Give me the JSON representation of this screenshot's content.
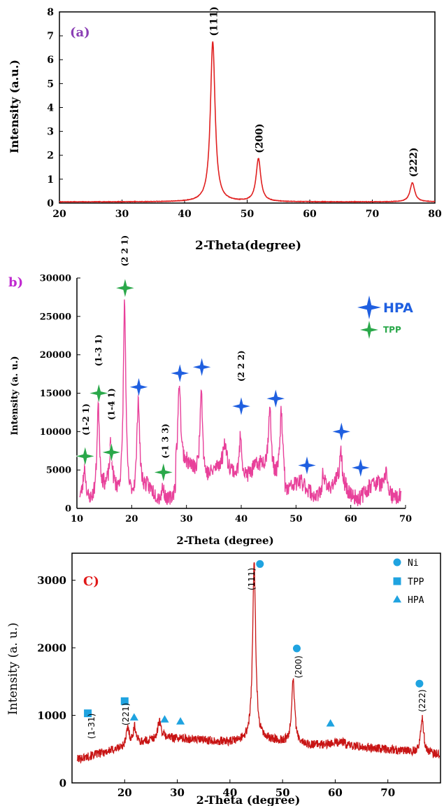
{
  "chart_data": [
    {
      "type": "line",
      "panel_label": "(a)",
      "xlabel": "2-Theta(degree)",
      "ylabel": "Intensity (a.u.)",
      "xlim": [
        20,
        80
      ],
      "ylim": [
        0,
        8
      ],
      "xticks": [
        20,
        30,
        40,
        50,
        60,
        70,
        80
      ],
      "yticks": [
        0,
        1,
        2,
        3,
        4,
        5,
        6,
        7,
        8
      ],
      "line_color": "#e02020",
      "baseline": 0.05,
      "peaks": [
        {
          "x": 44.5,
          "y": 6.75,
          "label": "(111)"
        },
        {
          "x": 51.8,
          "y": 1.85,
          "label": "(200)"
        },
        {
          "x": 76.4,
          "y": 0.85,
          "label": "(222)"
        }
      ]
    },
    {
      "type": "line",
      "panel_label": "b)",
      "xlabel": "2-Theta (degree)",
      "ylabel": "Intensity (a. u.)",
      "xlim": [
        10,
        70
      ],
      "ylim": [
        0,
        30000
      ],
      "xticks": [
        10,
        20,
        30,
        40,
        50,
        60,
        70
      ],
      "yticks": [
        0,
        5000,
        10000,
        15000,
        20000,
        25000,
        30000
      ],
      "line_color": "#e8409a",
      "legend": [
        {
          "name": "HPA",
          "color": "#1f5fe0"
        },
        {
          "name": "TPP",
          "color": "#2aa84a"
        }
      ],
      "peak_labels": [
        {
          "x": 11.5,
          "y": 9500,
          "label": "(1-2 1)"
        },
        {
          "x": 13.8,
          "y": 18500,
          "label": "(1-3 1)"
        },
        {
          "x": 16.2,
          "y": 11500,
          "label": "(1-4 1)"
        },
        {
          "x": 18.6,
          "y": 31500,
          "label": "(2 2 1)"
        },
        {
          "x": 26.0,
          "y": 6500,
          "label": "(-1 3 3)"
        },
        {
          "x": 39.9,
          "y": 16500,
          "label": "(2 2 2)"
        }
      ],
      "markers": [
        {
          "x": 11.5,
          "y": 6800,
          "phase": "TPP"
        },
        {
          "x": 14.0,
          "y": 15000,
          "phase": "TPP"
        },
        {
          "x": 16.3,
          "y": 7300,
          "phase": "TPP"
        },
        {
          "x": 18.8,
          "y": 28700,
          "phase": "TPP"
        },
        {
          "x": 21.3,
          "y": 15800,
          "phase": "HPA"
        },
        {
          "x": 25.8,
          "y": 4700,
          "phase": "TPP"
        },
        {
          "x": 28.8,
          "y": 17600,
          "phase": "HPA"
        },
        {
          "x": 32.8,
          "y": 18400,
          "phase": "HPA"
        },
        {
          "x": 40.0,
          "y": 13300,
          "phase": "HPA"
        },
        {
          "x": 46.3,
          "y": 14300,
          "phase": "HPA"
        },
        {
          "x": 52.0,
          "y": 5600,
          "phase": "HPA"
        },
        {
          "x": 58.3,
          "y": 10000,
          "phase": "HPA"
        },
        {
          "x": 61.8,
          "y": 5300,
          "phase": "HPA"
        }
      ],
      "peaks": [
        {
          "x": 11.4,
          "y": 6000
        },
        {
          "x": 13.9,
          "y": 13500
        },
        {
          "x": 16.2,
          "y": 7000
        },
        {
          "x": 18.7,
          "y": 27500
        },
        {
          "x": 21.2,
          "y": 14000
        },
        {
          "x": 25.7,
          "y": 3500
        },
        {
          "x": 28.7,
          "y": 16000
        },
        {
          "x": 32.7,
          "y": 17000
        },
        {
          "x": 37.0,
          "y": 7800
        },
        {
          "x": 39.9,
          "y": 10500
        },
        {
          "x": 45.2,
          "y": 13000
        },
        {
          "x": 47.3,
          "y": 13500
        },
        {
          "x": 55.0,
          "y": 5500
        },
        {
          "x": 58.2,
          "y": 6500
        },
        {
          "x": 66.5,
          "y": 5000
        }
      ]
    },
    {
      "type": "line",
      "panel_label": "C)",
      "xlabel": "2-Theta (degree)",
      "ylabel": "Intensity (a. u.)",
      "xlim": [
        10,
        80
      ],
      "ylim": [
        0,
        3400
      ],
      "xticks": [
        20,
        30,
        40,
        50,
        60,
        70
      ],
      "yticks": [
        0,
        1000,
        2000,
        3000
      ],
      "line_color": "#c81414",
      "legend": [
        {
          "name": "Ni",
          "marker": "circle",
          "color": "#1fa3e0"
        },
        {
          "name": "TPP",
          "marker": "square",
          "color": "#1fa3e0"
        },
        {
          "name": "HPA",
          "marker": "triangle",
          "color": "#1fa3e0"
        }
      ],
      "peak_labels": [
        {
          "x": 13.6,
          "y": 650,
          "label": "(1-31)"
        },
        {
          "x": 20.1,
          "y": 850,
          "label": "(221)"
        },
        {
          "x": 44.0,
          "y": 2850,
          "label": "(111)"
        },
        {
          "x": 52.9,
          "y": 1550,
          "label": "(200)"
        },
        {
          "x": 76.4,
          "y": 1050,
          "label": "(222)"
        }
      ],
      "markers": [
        {
          "x": 13.0,
          "y": 1030,
          "phase": "TPP"
        },
        {
          "x": 20.0,
          "y": 1210,
          "phase": "TPP"
        },
        {
          "x": 21.8,
          "y": 970,
          "phase": "HPA"
        },
        {
          "x": 27.6,
          "y": 940,
          "phase": "HPA"
        },
        {
          "x": 30.6,
          "y": 910,
          "phase": "HPA"
        },
        {
          "x": 45.7,
          "y": 3240,
          "phase": "Ni"
        },
        {
          "x": 52.7,
          "y": 1990,
          "phase": "Ni"
        },
        {
          "x": 59.1,
          "y": 880,
          "phase": "HPA"
        },
        {
          "x": 76.0,
          "y": 1470,
          "phase": "Ni"
        }
      ],
      "peaks": [
        {
          "x": 20.6,
          "y": 800
        },
        {
          "x": 21.9,
          "y": 820
        },
        {
          "x": 26.6,
          "y": 920
        },
        {
          "x": 44.6,
          "y": 3200
        },
        {
          "x": 52.0,
          "y": 1550
        },
        {
          "x": 76.5,
          "y": 980
        }
      ]
    }
  ]
}
